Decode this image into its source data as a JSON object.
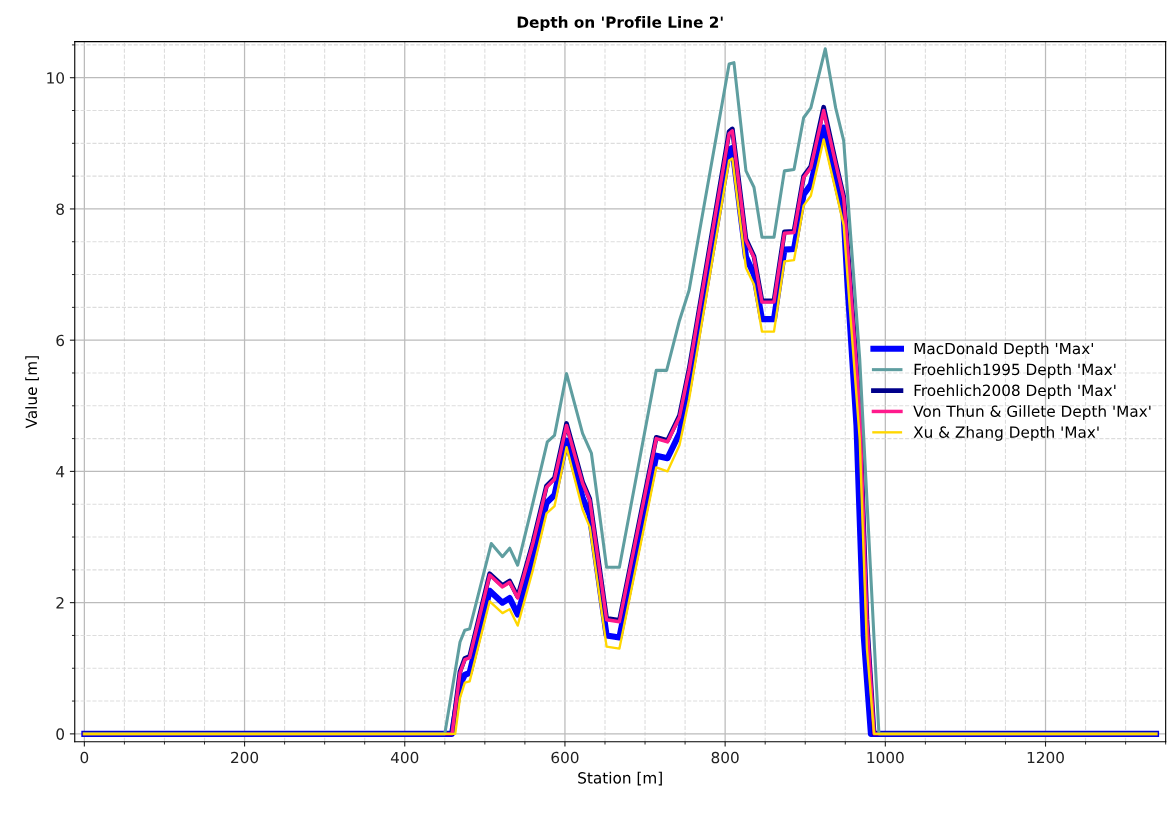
{
  "chart_data": {
    "type": "line",
    "title": "Depth on 'Profile Line 2'",
    "xlabel": "Station [m]",
    "ylabel": "Value [m]",
    "xlim": [
      -12,
      1350
    ],
    "ylim": [
      -0.12,
      10.55
    ],
    "xticks": [
      0,
      200,
      400,
      600,
      800,
      1000,
      1200
    ],
    "yticks": [
      0,
      2,
      4,
      6,
      8,
      10
    ],
    "grid": true,
    "legend": "right",
    "marker": "none",
    "line_style": "solid",
    "series": [
      {
        "name": "MacDonald Depth 'Max'",
        "color": "#0000ff",
        "x": [
          0,
          459,
          469,
          475,
          481,
          506,
          522,
          531,
          541,
          560,
          577,
          587,
          602,
          622,
          631,
          652,
          668,
          714,
          728,
          743,
          755,
          805,
          809,
          826,
          836,
          846,
          861,
          874,
          886,
          898,
          907,
          923,
          938,
          948,
          953,
          964,
          973,
          982,
          1338
        ],
        "values": [
          0,
          0,
          0.75,
          0.9,
          0.93,
          2.18,
          2.0,
          2.07,
          1.82,
          2.65,
          3.52,
          3.64,
          4.47,
          3.6,
          3.33,
          1.5,
          1.47,
          4.24,
          4.2,
          4.58,
          5.3,
          8.9,
          8.93,
          7.27,
          7.0,
          6.32,
          6.32,
          7.38,
          7.39,
          8.22,
          8.37,
          9.24,
          8.43,
          7.9,
          6.8,
          4.7,
          1.5,
          0,
          0
        ]
      },
      {
        "name": "Froehlich1995 Depth 'Max'",
        "color": "#5f9ea0",
        "x": [
          0,
          450,
          469,
          475,
          481,
          508,
          522,
          531,
          541,
          560,
          578,
          587,
          602,
          622,
          633,
          652,
          668,
          714,
          727,
          743,
          755,
          805,
          811,
          826,
          836,
          846,
          861,
          874,
          886,
          898,
          907,
          925,
          938,
          948,
          968,
          992,
          1338
        ],
        "values": [
          0,
          0,
          1.4,
          1.58,
          1.6,
          2.9,
          2.7,
          2.83,
          2.57,
          3.52,
          4.45,
          4.55,
          5.49,
          4.58,
          4.28,
          2.54,
          2.54,
          5.54,
          5.54,
          6.3,
          6.76,
          10.21,
          10.23,
          8.58,
          8.33,
          7.57,
          7.57,
          8.58,
          8.6,
          9.39,
          9.54,
          10.44,
          9.54,
          9.04,
          5.72,
          0,
          0
        ]
      },
      {
        "name": "Froehlich2008 Depth 'Max'",
        "color": "#00008b",
        "x": [
          0,
          459,
          469,
          475,
          481,
          506,
          522,
          531,
          541,
          560,
          577,
          587,
          602,
          622,
          631,
          652,
          668,
          714,
          728,
          743,
          755,
          805,
          809,
          826,
          836,
          846,
          861,
          874,
          886,
          898,
          907,
          923,
          938,
          948,
          955,
          968,
          977,
          986,
          1338
        ],
        "values": [
          0,
          0,
          0.95,
          1.15,
          1.18,
          2.44,
          2.26,
          2.33,
          2.09,
          2.92,
          3.78,
          3.9,
          4.73,
          3.84,
          3.58,
          1.76,
          1.73,
          4.52,
          4.47,
          4.85,
          5.56,
          9.18,
          9.22,
          7.54,
          7.28,
          6.6,
          6.6,
          7.65,
          7.66,
          8.5,
          8.65,
          9.55,
          8.71,
          8.19,
          7.08,
          4.95,
          1.74,
          0,
          0
        ]
      },
      {
        "name": "Von Thun & Gillete Depth 'Max'",
        "color": "#ff1a8c",
        "x": [
          0,
          459,
          469,
          475,
          481,
          506,
          522,
          531,
          541,
          560,
          577,
          587,
          602,
          622,
          631,
          652,
          668,
          714,
          728,
          743,
          755,
          805,
          809,
          826,
          836,
          846,
          861,
          874,
          886,
          898,
          907,
          923,
          938,
          948,
          955,
          968,
          977,
          986,
          1338
        ],
        "values": [
          0,
          0,
          0.93,
          1.13,
          1.16,
          2.42,
          2.24,
          2.31,
          2.07,
          2.9,
          3.76,
          3.88,
          4.7,
          3.82,
          3.56,
          1.74,
          1.71,
          4.5,
          4.45,
          4.83,
          5.54,
          9.15,
          9.19,
          7.52,
          7.26,
          6.58,
          6.58,
          7.63,
          7.64,
          8.48,
          8.63,
          9.5,
          8.69,
          8.17,
          7.06,
          4.93,
          1.72,
          0,
          0
        ]
      },
      {
        "name": "Xu & Zhang Depth 'Max'",
        "color": "#ffd700",
        "x": [
          0,
          463,
          469,
          475,
          481,
          506,
          522,
          531,
          541,
          560,
          577,
          587,
          602,
          622,
          631,
          652,
          668,
          714,
          728,
          743,
          755,
          805,
          809,
          826,
          836,
          846,
          861,
          874,
          886,
          898,
          907,
          923,
          938,
          948,
          955,
          968,
          977,
          986,
          1338
        ],
        "values": [
          0,
          0,
          0.55,
          0.78,
          0.8,
          2.02,
          1.84,
          1.9,
          1.65,
          2.5,
          3.36,
          3.47,
          4.37,
          3.42,
          3.15,
          1.33,
          1.3,
          4.06,
          4.0,
          4.4,
          5.1,
          8.74,
          8.77,
          7.1,
          6.85,
          6.13,
          6.13,
          7.2,
          7.22,
          8.05,
          8.2,
          9.06,
          8.28,
          7.75,
          6.6,
          4.5,
          1.3,
          0,
          0
        ]
      }
    ]
  }
}
